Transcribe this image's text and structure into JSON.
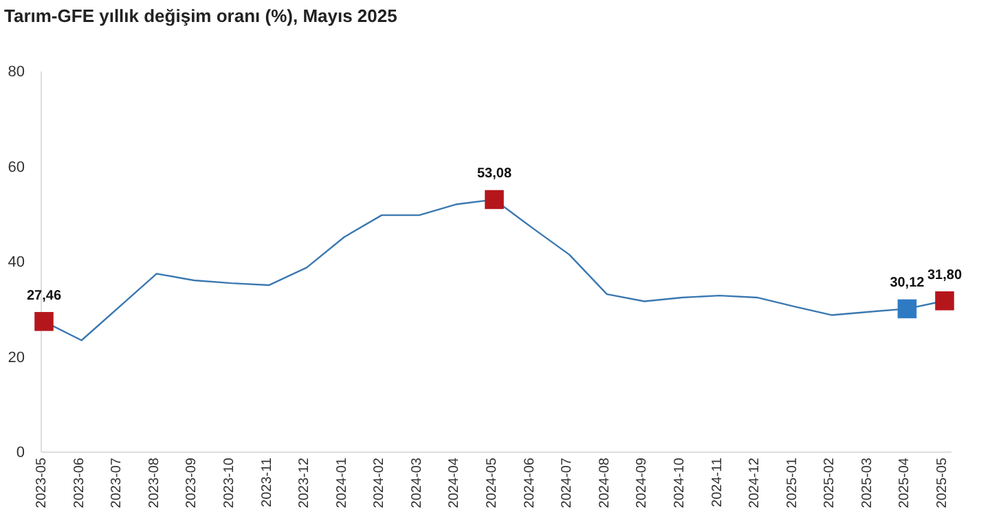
{
  "chart_data": {
    "type": "line",
    "title": "Tarım-GFE yıllık değişim oranı (%), Mayıs 2025",
    "categories": [
      "2023-05",
      "2023-06",
      "2023-07",
      "2023-08",
      "2023-09",
      "2023-10",
      "2023-11",
      "2023-12",
      "2024-01",
      "2024-02",
      "2024-03",
      "2024-04",
      "2024-05",
      "2024-06",
      "2024-07",
      "2024-08",
      "2024-09",
      "2024-10",
      "2024-11",
      "2024-12",
      "2025-01",
      "2025-02",
      "2025-03",
      "2025-04",
      "2025-05"
    ],
    "series": [
      {
        "color": "#3a78b0",
        "values": [
          27.46,
          23.5,
          30.5,
          37.5,
          36.1,
          35.5,
          35.1,
          38.8,
          45.2,
          49.8,
          49.8,
          52.1,
          53.08,
          47.2,
          41.5,
          33.2,
          31.7,
          32.5,
          32.9,
          32.5,
          30.6,
          28.8,
          29.5,
          30.12,
          31.8
        ]
      },
      {
        "type": "scatter",
        "marker": "square",
        "values": [
          27.46,
          null,
          null,
          null,
          null,
          null,
          null,
          null,
          null,
          null,
          null,
          null,
          53.08,
          null,
          null,
          null,
          null,
          null,
          null,
          null,
          null,
          null,
          null,
          30.12,
          31.8
        ],
        "colors": [
          "#b5161c",
          null,
          null,
          null,
          null,
          null,
          null,
          null,
          null,
          null,
          null,
          null,
          "#b5161c",
          null,
          null,
          null,
          null,
          null,
          null,
          null,
          null,
          null,
          null,
          "#2e7bc4",
          "#b5161c"
        ],
        "value_labels": [
          "27,46",
          null,
          null,
          null,
          null,
          null,
          null,
          null,
          null,
          null,
          null,
          null,
          "53,08",
          null,
          null,
          null,
          null,
          null,
          null,
          null,
          null,
          null,
          null,
          "30,12",
          "31,80"
        ]
      }
    ],
    "ylim": [
      0,
      80
    ],
    "yticks": [
      0,
      20,
      40,
      60,
      80
    ],
    "grid": false
  }
}
